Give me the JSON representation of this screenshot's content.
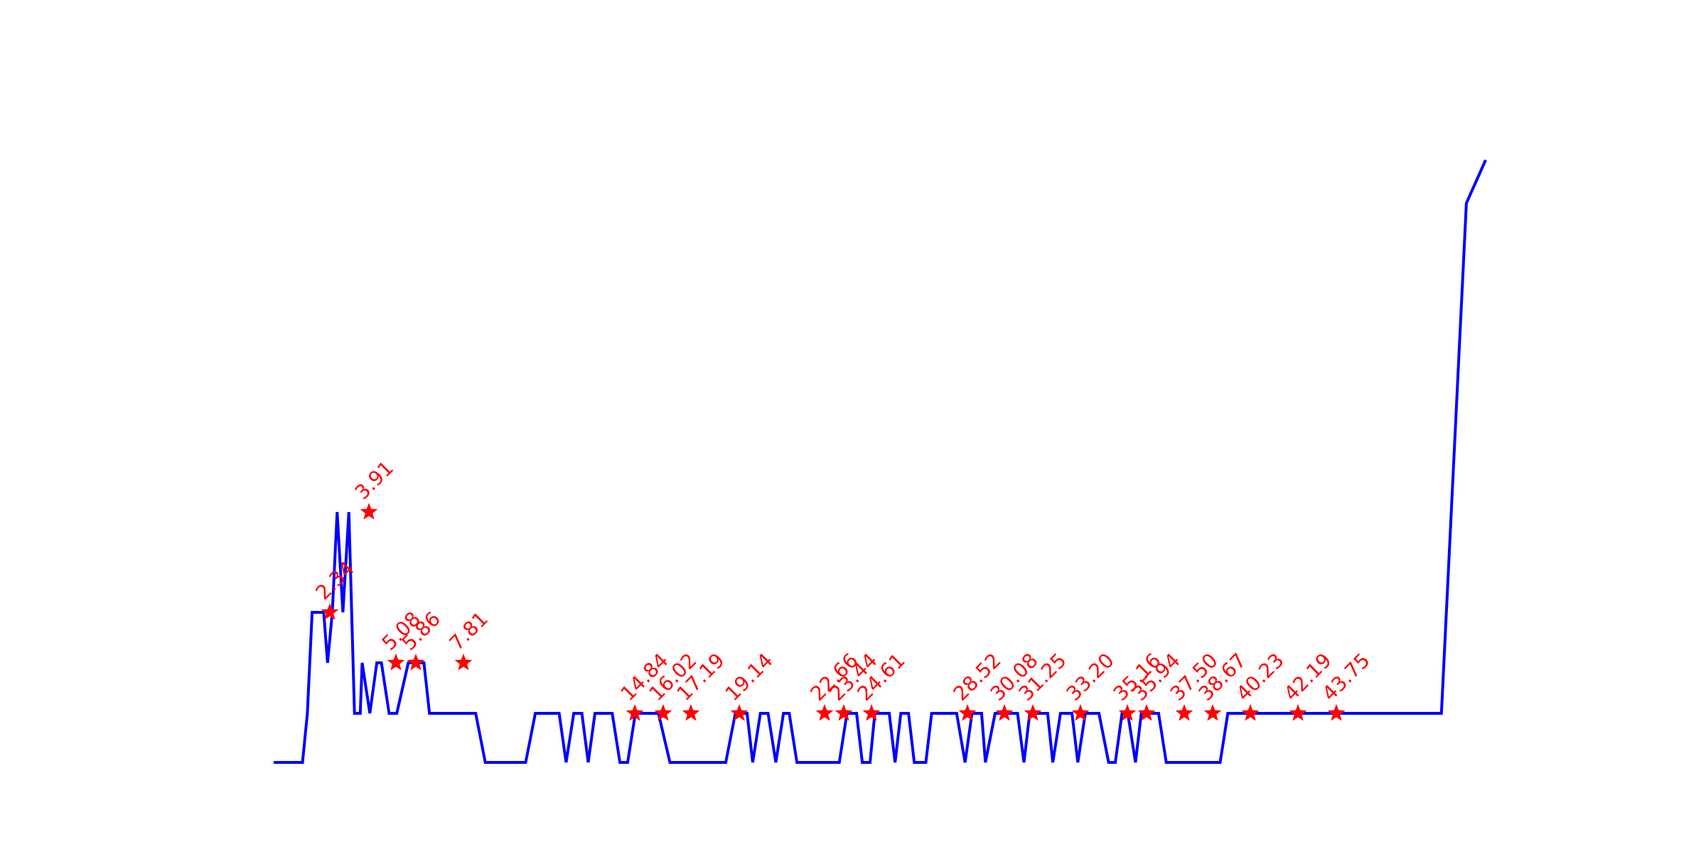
{
  "chart_data": {
    "type": "line",
    "title": "",
    "xlabel": "",
    "ylabel": "",
    "xlim": [
      0,
      63
    ],
    "ylim": [
      0,
      13
    ],
    "grid": false,
    "axes_visible": false,
    "line_color": "#0000ff",
    "marker_color": "#ff0000",
    "label_color": "#ff0000",
    "series": [
      {
        "x": [
          0,
          1.5,
          1.75,
          2.0,
          2.34,
          2.6,
          2.8,
          3.05,
          3.3,
          3.6,
          3.91,
          4.2,
          4.5,
          4.6,
          5.0,
          5.36,
          5.6,
          6.0,
          6.4,
          7.0,
          7.81,
          8.1,
          8.5,
          10.5,
          11.0,
          11.3,
          12.0,
          13.1,
          13.6,
          14.35,
          14.84,
          15.2,
          15.6,
          16.02,
          16.35,
          16.7,
          17.19,
          17.6,
          18.0,
          18.4,
          18.8,
          19.14,
          19.5,
          20.0,
          20.6,
          20.8,
          21.0,
          21.5,
          22.0,
          22.5,
          23.0,
          23.5,
          24.0,
          24.3,
          24.61,
          24.9,
          25.3,
          25.7,
          26.1,
          26.5,
          26.8,
          27.2,
          27.7,
          28.52,
          29.0,
          29.4,
          29.8,
          30.08,
          30.3,
          30.6,
          31.0,
          31.25,
          31.6,
          32.0,
          32.3,
          32.6,
          33.0,
          33.3,
          33.6,
          33.9,
          34.2,
          34.6,
          35.16,
          35.5,
          35.94,
          36.3,
          36.8,
          37.0,
          37.5,
          37.8,
          38.1,
          38.67,
          39.0,
          39.3,
          39.6,
          40.23,
          40.5,
          40.9,
          41.2,
          41.5,
          41.8,
          42.19,
          42.6,
          42.9,
          43.4,
          43.75,
          44.1,
          44.4,
          44.8,
          45.1,
          45.5,
          46.0,
          46.4,
          49.2,
          49.6,
          59.2,
          59.4,
          59.6,
          60.0,
          60.7,
          62.0,
          63.0
        ]
      }
    ],
    "peaks": [
      {
        "x": 2.34,
        "label": "2.34"
      },
      {
        "x": 3.91,
        "label": "3.91"
      },
      {
        "x": 5.08,
        "label": "5.08"
      },
      {
        "x": 5.86,
        "label": "5.86"
      },
      {
        "x": 7.81,
        "label": "7.81"
      },
      {
        "x": 14.84,
        "label": "14.84"
      },
      {
        "x": 16.02,
        "label": "16.02"
      },
      {
        "x": 17.19,
        "label": "17.19"
      },
      {
        "x": 19.14,
        "label": "19.14"
      },
      {
        "x": 22.66,
        "label": "22.66"
      },
      {
        "x": 23.44,
        "label": "23.44"
      },
      {
        "x": 24.61,
        "label": "24.61"
      },
      {
        "x": 28.52,
        "label": "28.52"
      },
      {
        "x": 30.08,
        "label": "30.08"
      },
      {
        "x": 31.25,
        "label": "31.25"
      },
      {
        "x": 33.2,
        "label": "33.20"
      },
      {
        "x": 35.16,
        "label": "35.16"
      },
      {
        "x": 35.94,
        "label": "35.94"
      },
      {
        "x": 37.5,
        "label": "37.50"
      },
      {
        "x": 38.67,
        "label": "38.67"
      },
      {
        "x": 40.23,
        "label": "40.23"
      },
      {
        "x": 42.19,
        "label": "42.19"
      },
      {
        "x": 43.75,
        "label": "43.75"
      }
    ]
  }
}
